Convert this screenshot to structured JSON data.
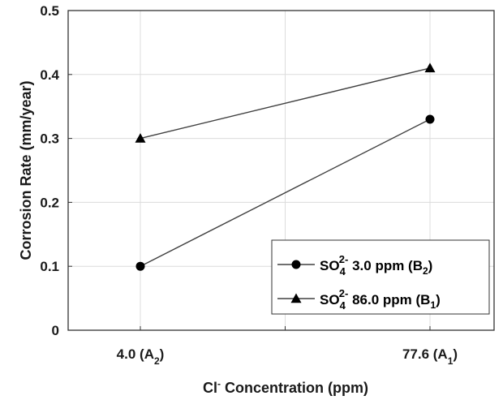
{
  "chart_data": {
    "type": "line",
    "categories": [
      "4.0 (A2)",
      "77.6 (A1)"
    ],
    "category_labels": [
      {
        "main": "4.0 (A",
        "sub": "2",
        "tail": ")"
      },
      {
        "main": "77.6 (A",
        "sub": "1",
        "tail": ")"
      }
    ],
    "xlabel": {
      "main": "Cl",
      "sup": "-",
      "tail": " Concentration (ppm)"
    },
    "ylabel": "Corrosion Rate (mm/year)",
    "ylim": [
      0,
      0.5
    ],
    "yticks": [
      0,
      0.1,
      0.2,
      0.3,
      0.4,
      0.5
    ],
    "ytick_labels": [
      "0",
      "0.1",
      "0.2",
      "0.3",
      "0.4",
      "0.5"
    ],
    "grid": true,
    "legend_position": "bottom-right",
    "series": [
      {
        "name": "SO4 2- 3.0 ppm (B2)",
        "legend": {
          "pre": "SO",
          "sub": "4",
          "sup": "2-",
          "mid": " 3.0 ppm (B",
          "sub2": "2",
          "tail": ")"
        },
        "marker": "circle",
        "values": [
          0.1,
          0.33
        ]
      },
      {
        "name": "SO4 2- 86.0 ppm (B1)",
        "legend": {
          "pre": "SO",
          "sub": "4",
          "sup": "2-",
          "mid": " 86.0 ppm (B",
          "sub2": "1",
          "tail": ")"
        },
        "marker": "triangle",
        "values": [
          0.3,
          0.41
        ]
      }
    ],
    "colors": {
      "line": "#404040",
      "marker": "#000000",
      "grid": "#dcdcdc",
      "axis": "#333333"
    }
  }
}
